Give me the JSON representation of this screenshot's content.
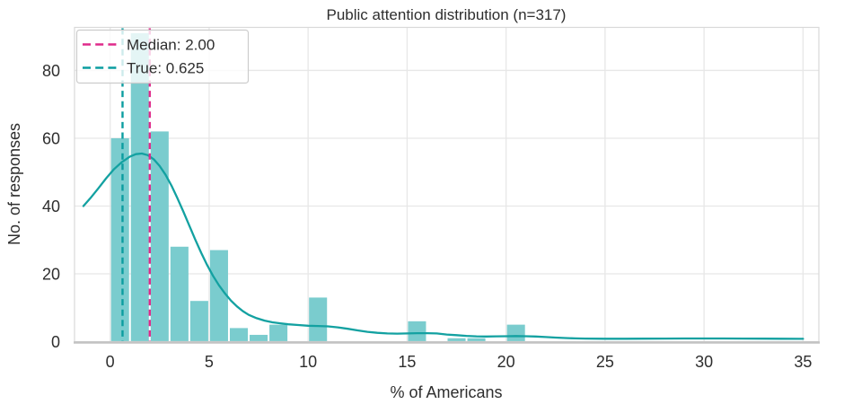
{
  "colors": {
    "bar_fill": "#7accce",
    "kde_line": "#13a1a1",
    "median_line": "#df2a8b",
    "true_line": "#0b9da0",
    "grid": "#e7e7e7",
    "spine": "#d9d9d9",
    "axis_line": "#c3c3c3",
    "text": "#2e2e2e",
    "legend_bg": "rgba(255,255,255,0.8)",
    "legend_border": "#cccccc"
  },
  "chart_data": {
    "type": "histogram+kde",
    "title": "Public attention distribution (n=317)",
    "xlabel": "% of Americans",
    "ylabel": "No. of responses",
    "n": 317,
    "xlim": [
      -1.8,
      35.8
    ],
    "ylim": [
      0,
      92.7
    ],
    "xticks": [
      0,
      5,
      10,
      15,
      20,
      25,
      30,
      35
    ],
    "yticks": [
      0,
      20,
      40,
      60,
      80
    ],
    "grid": true,
    "legend_position": "upper left",
    "bin_width": 1,
    "bars": [
      {
        "bin_start": 0,
        "bin_end": 1,
        "count": 60
      },
      {
        "bin_start": 1,
        "bin_end": 2,
        "count": 91
      },
      {
        "bin_start": 2,
        "bin_end": 3,
        "count": 62
      },
      {
        "bin_start": 3,
        "bin_end": 4,
        "count": 28
      },
      {
        "bin_start": 4,
        "bin_end": 5,
        "count": 12
      },
      {
        "bin_start": 5,
        "bin_end": 6,
        "count": 27
      },
      {
        "bin_start": 6,
        "bin_end": 7,
        "count": 4
      },
      {
        "bin_start": 7,
        "bin_end": 8,
        "count": 2
      },
      {
        "bin_start": 8,
        "bin_end": 9,
        "count": 5
      },
      {
        "bin_start": 10,
        "bin_end": 11,
        "count": 13
      },
      {
        "bin_start": 15,
        "bin_end": 16,
        "count": 6
      },
      {
        "bin_start": 17,
        "bin_end": 18,
        "count": 1
      },
      {
        "bin_start": 18,
        "bin_end": 19,
        "count": 1
      },
      {
        "bin_start": 20,
        "bin_end": 21,
        "count": 5
      }
    ],
    "kde_points": [
      [
        -1.35,
        40
      ],
      [
        -1.0,
        42.3
      ],
      [
        -0.6,
        45.2
      ],
      [
        -0.2,
        48.2
      ],
      [
        0.2,
        50.9
      ],
      [
        0.6,
        53.0
      ],
      [
        1.0,
        54.6
      ],
      [
        1.3,
        55.3
      ],
      [
        1.6,
        55.5
      ],
      [
        1.9,
        55.0
      ],
      [
        2.2,
        53.8
      ],
      [
        2.5,
        51.8
      ],
      [
        2.8,
        49.2
      ],
      [
        3.1,
        46.0
      ],
      [
        3.4,
        42.3
      ],
      [
        3.7,
        38.3
      ],
      [
        4.0,
        34.2
      ],
      [
        4.3,
        30.1
      ],
      [
        4.6,
        26.2
      ],
      [
        4.9,
        22.6
      ],
      [
        5.2,
        19.4
      ],
      [
        5.5,
        16.6
      ],
      [
        5.8,
        14.2
      ],
      [
        6.1,
        12.1
      ],
      [
        6.4,
        10.4
      ],
      [
        6.7,
        9.0
      ],
      [
        7.0,
        7.9
      ],
      [
        7.4,
        6.9
      ],
      [
        7.8,
        6.2
      ],
      [
        8.2,
        5.7
      ],
      [
        8.6,
        5.4
      ],
      [
        9.0,
        5.1
      ],
      [
        9.5,
        4.9
      ],
      [
        10.0,
        4.7
      ],
      [
        10.5,
        4.6
      ],
      [
        11.0,
        4.5
      ],
      [
        11.5,
        4.2
      ],
      [
        12.0,
        3.8
      ],
      [
        12.5,
        3.3
      ],
      [
        13.0,
        2.9
      ],
      [
        13.5,
        2.6
      ],
      [
        14.0,
        2.4
      ],
      [
        14.5,
        2.35
      ],
      [
        15.0,
        2.4
      ],
      [
        15.5,
        2.5
      ],
      [
        16.0,
        2.5
      ],
      [
        16.5,
        2.4
      ],
      [
        17.0,
        2.1
      ],
      [
        17.5,
        1.9
      ],
      [
        18.0,
        1.7
      ],
      [
        18.5,
        1.55
      ],
      [
        19.0,
        1.5
      ],
      [
        19.5,
        1.55
      ],
      [
        20.0,
        1.6
      ],
      [
        20.5,
        1.65
      ],
      [
        21.0,
        1.6
      ],
      [
        21.5,
        1.5
      ],
      [
        22.0,
        1.35
      ],
      [
        22.5,
        1.2
      ],
      [
        23.0,
        1.05
      ],
      [
        23.5,
        0.95
      ],
      [
        24.0,
        0.9
      ],
      [
        25.0,
        0.85
      ],
      [
        26.0,
        0.85
      ],
      [
        27.0,
        0.87
      ],
      [
        28.0,
        0.9
      ],
      [
        29.0,
        0.92
      ],
      [
        30.0,
        0.93
      ],
      [
        31.0,
        0.92
      ],
      [
        32.0,
        0.9
      ],
      [
        33.0,
        0.88
      ],
      [
        34.0,
        0.85
      ],
      [
        35.0,
        0.82
      ]
    ],
    "vlines": [
      {
        "name": "median",
        "x": 2.0,
        "label": "Median: 2.00",
        "color": "#df2a8b",
        "style": "dashed"
      },
      {
        "name": "true",
        "x": 0.625,
        "label": "True: 0.625",
        "color": "#0b9da0",
        "style": "dashed"
      }
    ]
  }
}
